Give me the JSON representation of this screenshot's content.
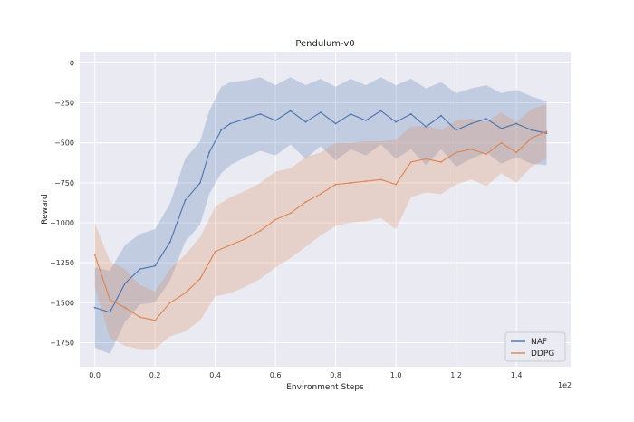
{
  "chart_data": {
    "type": "line",
    "title": "Pendulum-v0",
    "xlabel": "Environment Steps",
    "ylabel": "Reward",
    "x_offset_text": "1e2",
    "xlim": [
      -0.05,
      1.58
    ],
    "ylim": [
      -1900,
      70
    ],
    "x_ticks": [
      0.0,
      0.2,
      0.4,
      0.6,
      0.8,
      1.0,
      1.2,
      1.4
    ],
    "x_tick_labels": [
      "0.0",
      "0.2",
      "0.4",
      "0.6",
      "0.8",
      "1.0",
      "1.2",
      "1.4"
    ],
    "y_ticks": [
      0,
      -250,
      -500,
      -750,
      -1000,
      -1250,
      -1500,
      -1750
    ],
    "y_tick_labels": [
      "0",
      "−250",
      "−500",
      "−750",
      "−1000",
      "−1250",
      "−1500",
      "−1750"
    ],
    "grid": true,
    "legend_position": "lower-right",
    "background_color": "#eaeaf2",
    "series": [
      {
        "name": "NAF",
        "color": "#4c72b0",
        "points": [
          [
            0.0,
            -1530
          ],
          [
            0.05,
            -1560
          ],
          [
            0.1,
            -1380
          ],
          [
            0.15,
            -1290
          ],
          [
            0.2,
            -1270
          ],
          [
            0.25,
            -1120
          ],
          [
            0.3,
            -860
          ],
          [
            0.35,
            -750
          ],
          [
            0.38,
            -560
          ],
          [
            0.42,
            -420
          ],
          [
            0.45,
            -380
          ],
          [
            0.5,
            -350
          ],
          [
            0.55,
            -320
          ],
          [
            0.6,
            -360
          ],
          [
            0.65,
            -300
          ],
          [
            0.7,
            -370
          ],
          [
            0.75,
            -310
          ],
          [
            0.8,
            -380
          ],
          [
            0.85,
            -320
          ],
          [
            0.9,
            -360
          ],
          [
            0.95,
            -300
          ],
          [
            1.0,
            -370
          ],
          [
            1.05,
            -320
          ],
          [
            1.1,
            -400
          ],
          [
            1.15,
            -330
          ],
          [
            1.2,
            -420
          ],
          [
            1.25,
            -380
          ],
          [
            1.3,
            -350
          ],
          [
            1.35,
            -410
          ],
          [
            1.4,
            -380
          ],
          [
            1.45,
            -420
          ],
          [
            1.5,
            -440
          ]
        ],
        "spread": [
          250,
          260,
          240,
          220,
          230,
          240,
          260,
          260,
          260,
          270,
          260,
          240,
          230,
          220,
          210,
          230,
          210,
          230,
          220,
          220,
          210,
          230,
          220,
          240,
          210,
          230,
          220,
          210,
          220,
          210,
          210,
          200
        ]
      },
      {
        "name": "DDPG",
        "color": "#dd8452",
        "points": [
          [
            0.0,
            -1200
          ],
          [
            0.05,
            -1480
          ],
          [
            0.1,
            -1530
          ],
          [
            0.15,
            -1590
          ],
          [
            0.2,
            -1610
          ],
          [
            0.25,
            -1500
          ],
          [
            0.3,
            -1440
          ],
          [
            0.35,
            -1350
          ],
          [
            0.4,
            -1180
          ],
          [
            0.45,
            -1140
          ],
          [
            0.5,
            -1100
          ],
          [
            0.55,
            -1050
          ],
          [
            0.6,
            -980
          ],
          [
            0.65,
            -940
          ],
          [
            0.7,
            -870
          ],
          [
            0.75,
            -820
          ],
          [
            0.8,
            -760
          ],
          [
            0.85,
            -750
          ],
          [
            0.9,
            -740
          ],
          [
            0.95,
            -730
          ],
          [
            1.0,
            -760
          ],
          [
            1.05,
            -620
          ],
          [
            1.1,
            -600
          ],
          [
            1.15,
            -620
          ],
          [
            1.2,
            -560
          ],
          [
            1.25,
            -540
          ],
          [
            1.3,
            -570
          ],
          [
            1.35,
            -500
          ],
          [
            1.4,
            -560
          ],
          [
            1.45,
            -470
          ],
          [
            1.5,
            -430
          ]
        ],
        "spread": [
          200,
          240,
          240,
          200,
          180,
          210,
          240,
          260,
          280,
          300,
          300,
          300,
          300,
          280,
          280,
          260,
          260,
          250,
          250,
          240,
          280,
          220,
          210,
          200,
          200,
          190,
          200,
          190,
          190,
          180,
          170
        ]
      }
    ]
  }
}
